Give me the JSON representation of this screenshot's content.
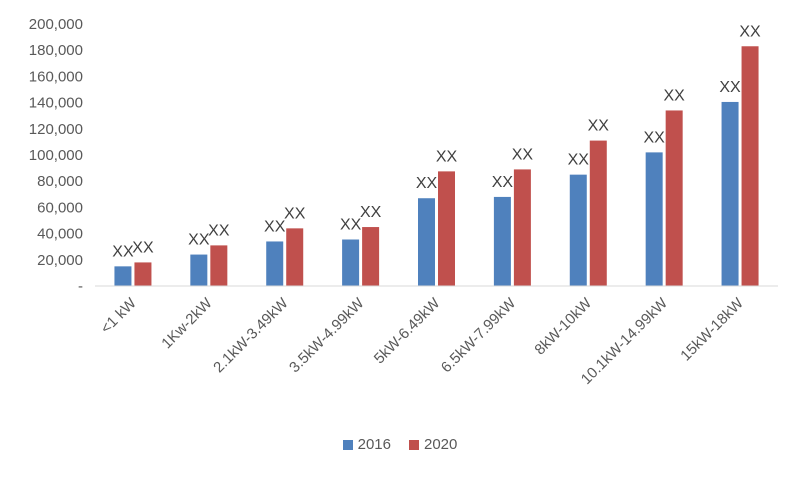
{
  "chart_data": {
    "type": "bar",
    "categories": [
      "<1 kW",
      "1Kw-2kW",
      "2.1kW-3.49kW",
      "3.5kW-4.99kW",
      "5kW-6.49kW",
      "6.5kW-7.99kW",
      "8kW-10kW",
      "10.1kW-14.99kW",
      "15kW-18kW"
    ],
    "series": [
      {
        "name": "2016",
        "color": "#4f81bd",
        "values": [
          15000,
          24000,
          34000,
          35500,
          67000,
          68000,
          85000,
          102000,
          140500
        ]
      },
      {
        "name": "2020",
        "color": "#c0504d",
        "values": [
          18000,
          31000,
          44000,
          45000,
          87500,
          89000,
          111000,
          134000,
          183000
        ]
      }
    ],
    "data_labels": [
      "XX",
      "XX",
      "XX",
      "XX",
      "XX",
      "XX",
      "XX",
      "XX",
      "XX",
      "XX",
      "XX",
      "XX",
      "XX",
      "XX",
      "XX",
      "XX",
      "XX",
      "XX"
    ],
    "yticks": [
      "-",
      "20,000",
      "40,000",
      "60,000",
      "80,000",
      "100,000",
      "120,000",
      "140,000",
      "160,000",
      "180,000",
      "200,000"
    ],
    "ylim": [
      0,
      200000
    ],
    "grid": false,
    "legend_position": "bottom",
    "title": "",
    "xlabel": "",
    "ylabel": ""
  }
}
